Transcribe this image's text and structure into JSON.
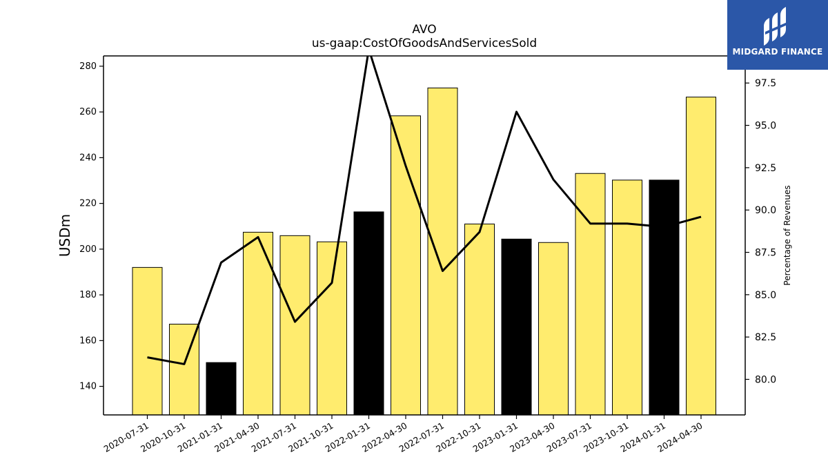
{
  "chart_data": {
    "type": "bar",
    "title": "AVO",
    "subtitle": "us-gaap:CostOfGoodsAndServicesSold",
    "ylabel": "USDm",
    "y2label": "Percentage of Revenues",
    "ylim": [
      127.5,
      284.5
    ],
    "y2lim": [
      77.9,
      99.1
    ],
    "yticks": [
      140,
      160,
      180,
      200,
      220,
      240,
      260,
      280
    ],
    "y2ticks": [
      "80.0",
      "82.5",
      "85.0",
      "87.5",
      "90.0",
      "92.5",
      "95.0",
      "97.5"
    ],
    "categories": [
      "2020-07-31",
      "2020-10-31",
      "2021-01-31",
      "2021-04-30",
      "2021-07-31",
      "2021-10-31",
      "2022-01-31",
      "2022-04-30",
      "2022-07-31",
      "2022-10-31",
      "2023-01-31",
      "2023-04-30",
      "2023-07-31",
      "2023-10-31",
      "2024-01-31",
      "2024-04-30"
    ],
    "series": [
      {
        "kind": "bar",
        "values": [
          192.0,
          167.2,
          150.4,
          207.4,
          205.9,
          203.2,
          216.3,
          258.3,
          270.5,
          211.0,
          204.4,
          202.9,
          233.1,
          230.2,
          230.2,
          266.5
        ],
        "colors": [
          "#ffec6e",
          "#ffec6e",
          "#000000",
          "#ffec6e",
          "#ffec6e",
          "#ffec6e",
          "#000000",
          "#ffec6e",
          "#ffec6e",
          "#ffec6e",
          "#000000",
          "#ffec6e",
          "#ffec6e",
          "#ffec6e",
          "#000000",
          "#ffec6e"
        ]
      },
      {
        "kind": "line",
        "axis": "right",
        "values": [
          81.3,
          80.9,
          86.9,
          88.4,
          83.4,
          85.7,
          99.5,
          92.6,
          86.4,
          88.7,
          95.8,
          91.8,
          89.2,
          89.2,
          89.0,
          89.6
        ],
        "color": "#000000"
      }
    ]
  },
  "logo": {
    "text": "MIDGARD FINANCE",
    "background": "#2b57a8"
  }
}
